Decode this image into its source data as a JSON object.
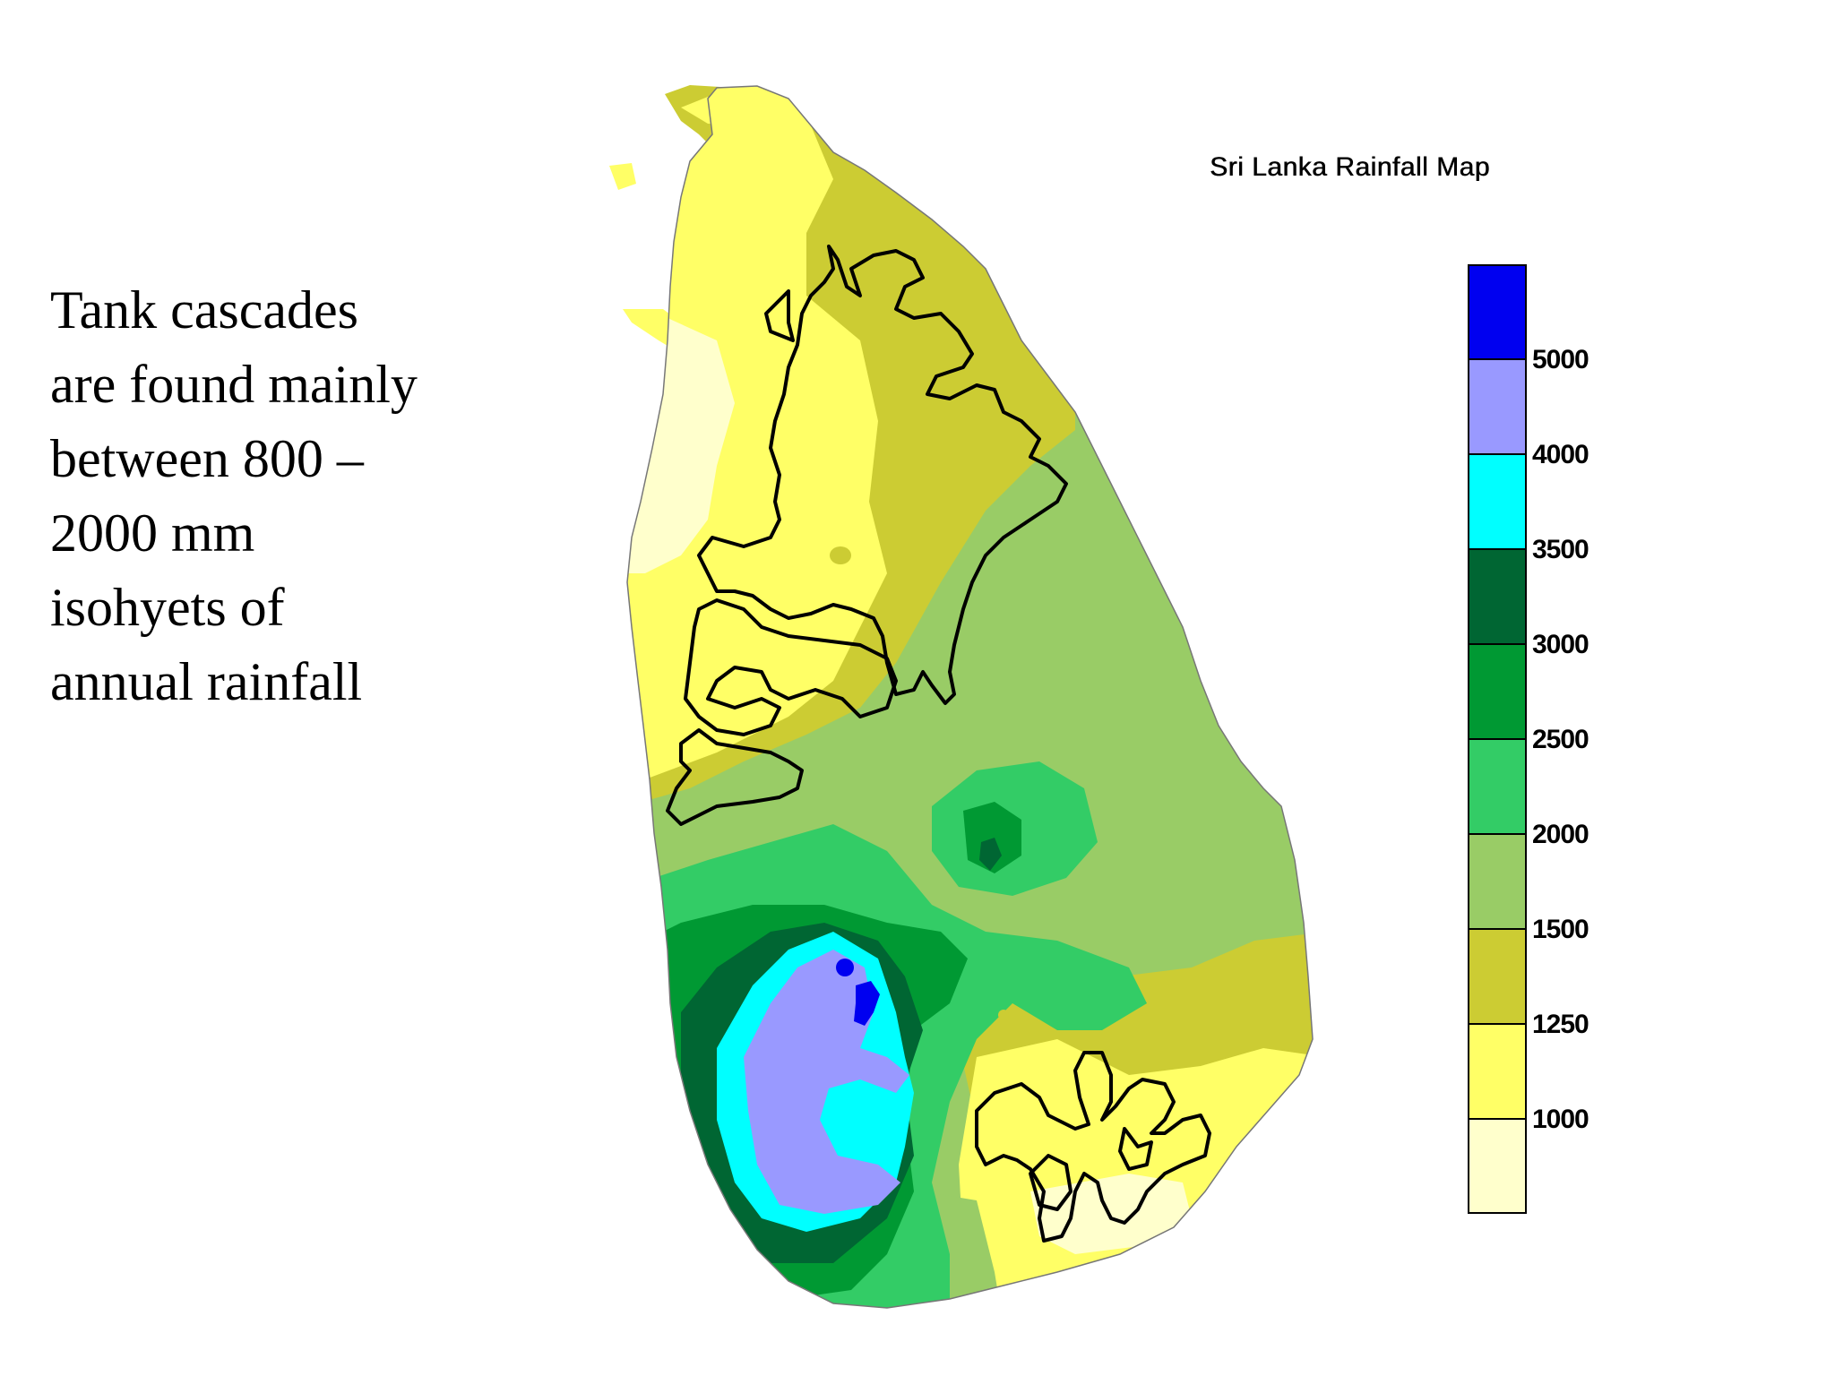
{
  "caption": {
    "lines": [
      "Tank cascades",
      "are found mainly",
      "between 800 –",
      "2000 mm",
      "isohyets of",
      "annual rainfall"
    ]
  },
  "map": {
    "title": "Sri Lanka Rainfall Map",
    "legend": {
      "unit": "",
      "classes": [
        {
          "color": "#0000f0"
        },
        {
          "color": "#9999ff"
        },
        {
          "color": "#00ffff"
        },
        {
          "color": "#006633"
        },
        {
          "color": "#009933"
        },
        {
          "color": "#33cc66"
        },
        {
          "color": "#99cc66"
        },
        {
          "color": "#cccc33"
        },
        {
          "color": "#ffff66"
        },
        {
          "color": "#ffffcc"
        }
      ],
      "tick_labels": [
        "5000",
        "4000",
        "3500",
        "3000",
        "2500",
        "2000",
        "1500",
        "1250",
        "1000"
      ]
    },
    "zone_colors": {
      "lt1000": "#ffffcc",
      "r1000_1250": "#ffff66",
      "r1250_1500": "#cccc33",
      "r1500_2000": "#99cc66",
      "r2000_2500": "#33cc66",
      "r2500_3000": "#009933",
      "r3000_3500": "#006633",
      "r3500_4000": "#00ffff",
      "r4000_5000": "#9999ff",
      "gt5000": "#0000f0",
      "cascade_outline": "#000000"
    }
  }
}
